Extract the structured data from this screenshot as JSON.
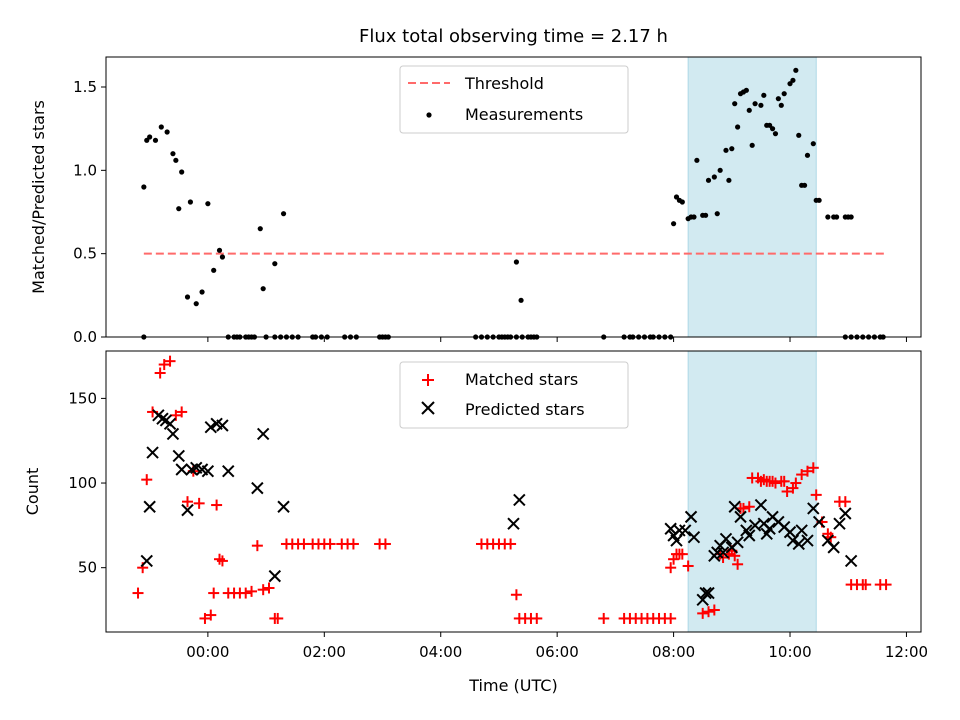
{
  "chart_data": [
    {
      "type": "scatter",
      "title": "Flux total observing time = 2.17 h",
      "xlabel": "",
      "ylabel": "Matched/Predicted stars",
      "xlim": [
        -1.75,
        12.25
      ],
      "ylim": [
        0,
        1.68
      ],
      "yticks": [
        "0.0",
        "0.5",
        "1.0",
        "1.5"
      ],
      "threshold": {
        "name": "Threshold",
        "value": 0.5,
        "x_range": [
          -1.1,
          11.65
        ],
        "color": "#ff6a6a"
      },
      "shaded_region": {
        "x_range": [
          8.25,
          10.45
        ],
        "color": "#add8e6"
      },
      "series": [
        {
          "name": "Measurements",
          "color": "#000000",
          "x": [
            -1.1,
            -1.05,
            -1.0,
            -0.9,
            -0.8,
            -0.7,
            -0.6,
            -0.55,
            -0.5,
            -0.45,
            -0.35,
            -0.3,
            -0.2,
            -0.1,
            0.0,
            0.1,
            0.2,
            0.25,
            0.35,
            0.9,
            0.95,
            1.15,
            1.3,
            5.3,
            5.38,
            8.0,
            8.05,
            8.1,
            8.15,
            8.25,
            8.3,
            8.35,
            8.4,
            8.5,
            8.55,
            8.6,
            8.7,
            8.75,
            8.8,
            8.9,
            8.95,
            9.0,
            9.05,
            9.1,
            9.15,
            9.2,
            9.25,
            9.3,
            9.35,
            9.4,
            9.5,
            9.55,
            9.6,
            9.65,
            9.7,
            9.75,
            9.8,
            9.85,
            9.9,
            10.0,
            10.05,
            10.1,
            10.15,
            10.2,
            10.25,
            10.3,
            10.4,
            10.45,
            10.5,
            10.65,
            10.75,
            10.8,
            10.95,
            11.0,
            11.05
          ],
          "y": [
            0.9,
            1.18,
            1.2,
            1.18,
            1.26,
            1.23,
            1.1,
            1.06,
            0.77,
            0.99,
            0.24,
            0.81,
            0.2,
            0.27,
            0.8,
            0.4,
            0.52,
            0.48,
            0.0,
            0.65,
            0.29,
            0.44,
            0.74,
            0.45,
            0.22,
            0.68,
            0.84,
            0.82,
            0.81,
            0.71,
            0.72,
            0.72,
            1.06,
            0.73,
            0.73,
            0.94,
            0.96,
            0.74,
            1.0,
            1.12,
            0.94,
            1.13,
            1.4,
            1.26,
            1.46,
            1.47,
            1.48,
            1.36,
            1.15,
            1.4,
            1.39,
            1.45,
            1.27,
            1.27,
            1.25,
            1.22,
            1.43,
            1.39,
            1.46,
            1.52,
            1.54,
            1.6,
            1.21,
            0.91,
            0.91,
            1.09,
            1.16,
            0.82,
            0.82,
            0.72,
            0.72,
            0.72,
            0.72,
            0.72,
            0.72
          ],
          "zeros_x": [
            -1.1,
            0.45,
            0.5,
            0.55,
            0.65,
            0.7,
            0.75,
            0.8,
            1.0,
            1.15,
            1.25,
            1.35,
            1.45,
            1.55,
            1.8,
            1.85,
            1.95,
            2.05,
            2.35,
            2.45,
            2.55,
            2.95,
            3.0,
            3.05,
            3.1,
            4.6,
            4.7,
            4.8,
            4.9,
            5.0,
            5.05,
            5.1,
            5.15,
            5.2,
            5.3,
            5.4,
            5.5,
            5.55,
            5.6,
            5.65,
            6.8,
            7.15,
            7.25,
            7.3,
            7.4,
            7.5,
            7.6,
            7.65,
            7.75,
            7.85,
            7.95,
            10.95,
            11.05,
            11.15,
            11.25,
            11.35,
            11.45,
            11.55,
            11.6
          ]
        }
      ]
    },
    {
      "type": "scatter",
      "title": "",
      "xlabel": "Time (UTC)",
      "ylabel": "Count",
      "xlim": [
        -1.75,
        12.25
      ],
      "ylim": [
        12,
        178
      ],
      "yticks": [
        "50",
        "100",
        "150"
      ],
      "xticks": [
        "00:00",
        "02:00",
        "04:00",
        "06:00",
        "08:00",
        "10:00",
        "12:00"
      ],
      "shaded_region": {
        "x_range": [
          8.25,
          10.45
        ],
        "color": "#add8e6"
      },
      "series": [
        {
          "name": "Matched stars",
          "color": "#ff0000",
          "marker": "plus",
          "x": [
            -1.2,
            -1.12,
            -1.05,
            -0.95,
            -0.82,
            -0.75,
            -0.65,
            -0.55,
            -0.45,
            -0.35,
            -0.25,
            -0.15,
            -0.05,
            0.05,
            0.1,
            0.15,
            0.2,
            0.25,
            0.35,
            0.45,
            0.55,
            0.65,
            0.75,
            0.85,
            0.95,
            1.05,
            1.15,
            1.2,
            1.35,
            1.45,
            1.55,
            1.65,
            1.8,
            1.9,
            2.0,
            2.1,
            2.3,
            2.4,
            2.5,
            2.95,
            3.05,
            4.7,
            4.8,
            4.9,
            5.0,
            5.1,
            5.2,
            5.3,
            5.35,
            5.45,
            5.55,
            5.65,
            6.8,
            7.15,
            7.25,
            7.35,
            7.45,
            7.55,
            7.65,
            7.75,
            7.85,
            7.95,
            7.95,
            8.0,
            8.05,
            8.1,
            8.15,
            8.25,
            8.5,
            8.6,
            8.7,
            8.8,
            8.85,
            8.95,
            9.0,
            9.05,
            9.1,
            9.15,
            9.2,
            9.3,
            9.35,
            9.45,
            9.5,
            9.55,
            9.6,
            9.65,
            9.7,
            9.75,
            9.85,
            9.9,
            9.95,
            10.05,
            10.1,
            10.2,
            10.3,
            10.4,
            10.45,
            10.55,
            10.65,
            10.7,
            10.85,
            10.95,
            11.05,
            11.15,
            11.25,
            11.3,
            11.55,
            11.65
          ],
          "y": [
            35,
            50,
            102,
            142,
            165,
            170,
            172,
            140,
            142,
            89,
            107,
            88,
            20,
            22,
            35,
            87,
            55,
            54,
            35,
            35,
            35,
            35,
            36,
            63,
            37,
            38,
            20,
            20,
            64,
            64,
            64,
            64,
            64,
            64,
            64,
            64,
            64,
            64,
            64,
            64,
            64,
            64,
            64,
            64,
            64,
            64,
            64,
            34,
            20,
            20,
            20,
            20,
            20,
            20,
            20,
            20,
            20,
            20,
            20,
            20,
            20,
            20,
            50,
            55,
            58,
            58,
            58,
            51,
            23,
            24,
            25,
            58,
            56,
            58,
            60,
            57,
            52,
            85,
            85,
            86,
            103,
            103,
            101,
            102,
            101,
            101,
            101,
            100,
            101,
            101,
            95,
            97,
            100,
            105,
            107,
            109,
            93,
            77,
            70,
            68,
            89,
            89,
            40,
            40,
            40,
            40,
            40,
            40
          ],
          "y_note": ""
        },
        {
          "name": "Predicted stars",
          "color": "#000000",
          "marker": "x",
          "x": [
            -1.05,
            -1.0,
            -0.95,
            -0.85,
            -0.78,
            -0.72,
            -0.65,
            -0.6,
            -0.5,
            -0.45,
            -0.35,
            -0.28,
            -0.2,
            -0.1,
            0.0,
            0.05,
            0.15,
            0.25,
            0.35,
            0.85,
            0.95,
            1.15,
            1.3,
            5.25,
            5.35,
            7.95,
            8.0,
            8.05,
            8.1,
            8.2,
            8.3,
            8.35,
            8.5,
            8.55,
            8.6,
            8.7,
            8.75,
            8.8,
            8.85,
            8.9,
            9.0,
            9.05,
            9.1,
            9.15,
            9.25,
            9.3,
            9.4,
            9.5,
            9.55,
            9.6,
            9.65,
            9.7,
            9.8,
            9.9,
            10.0,
            10.05,
            10.15,
            10.2,
            10.3,
            10.4,
            10.5,
            10.65,
            10.75,
            10.85,
            10.95,
            11.05
          ],
          "y": [
            54,
            86,
            118,
            140,
            138,
            137,
            135,
            129,
            116,
            108,
            84,
            108,
            109,
            108,
            107,
            133,
            135,
            134,
            107,
            97,
            129,
            45,
            86,
            76,
            90,
            73,
            69,
            66,
            72,
            72,
            80,
            68,
            31,
            35,
            35,
            57,
            59,
            63,
            59,
            67,
            62,
            86,
            65,
            80,
            72,
            69,
            75,
            87,
            76,
            70,
            73,
            80,
            77,
            74,
            71,
            66,
            64,
            72,
            66,
            85,
            77,
            66,
            62,
            76,
            82,
            54
          ]
        }
      ]
    }
  ]
}
